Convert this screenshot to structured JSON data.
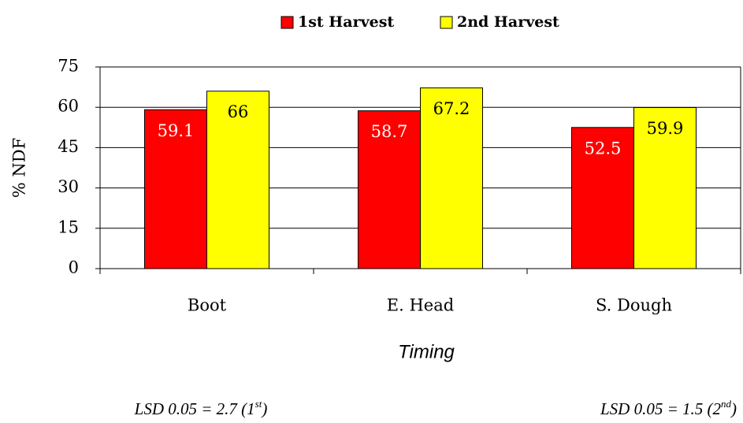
{
  "chart_data": {
    "type": "bar",
    "categories": [
      "Boot",
      "E. Head",
      "S. Dough"
    ],
    "series": [
      {
        "name": "1st Harvest",
        "color": "#ff0000",
        "values": [
          59.1,
          58.7,
          52.5
        ]
      },
      {
        "name": "2nd Harvest",
        "color": "#ffff00",
        "values": [
          66,
          67.2,
          59.9
        ]
      }
    ],
    "ylabel": "% NDF",
    "xlabel": "Timing",
    "ylim": [
      0,
      75
    ],
    "yticks": [
      0,
      15,
      30,
      45,
      60,
      75
    ],
    "grid": true,
    "legend": "top",
    "annotations": [
      {
        "text": "LSD 0.05 = 2.7 (1",
        "sup": "st",
        "end": ")"
      },
      {
        "text": "LSD 0.05 = 1.5 (2",
        "sup": "nd",
        "end": ")"
      }
    ]
  }
}
